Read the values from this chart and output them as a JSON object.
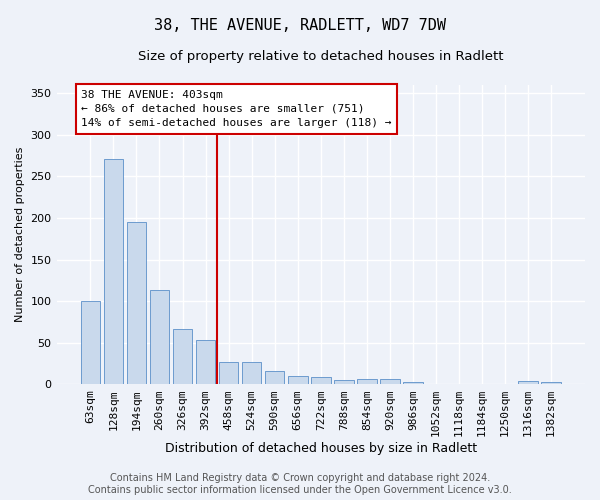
{
  "title": "38, THE AVENUE, RADLETT, WD7 7DW",
  "subtitle": "Size of property relative to detached houses in Radlett",
  "xlabel": "Distribution of detached houses by size in Radlett",
  "ylabel": "Number of detached properties",
  "categories": [
    "63sqm",
    "128sqm",
    "194sqm",
    "260sqm",
    "326sqm",
    "392sqm",
    "458sqm",
    "524sqm",
    "590sqm",
    "656sqm",
    "722sqm",
    "788sqm",
    "854sqm",
    "920sqm",
    "986sqm",
    "1052sqm",
    "1118sqm",
    "1184sqm",
    "1250sqm",
    "1316sqm",
    "1382sqm"
  ],
  "values": [
    100,
    271,
    195,
    114,
    66,
    53,
    27,
    27,
    16,
    10,
    9,
    5,
    6,
    6,
    3,
    1,
    1,
    1,
    0,
    4,
    3
  ],
  "bar_color": "#c9d9ec",
  "bar_edge_color": "#5b8fc9",
  "vline_x_index": 5,
  "vline_color": "#cc0000",
  "annotation_title": "38 THE AVENUE: 403sqm",
  "annotation_line1": "← 86% of detached houses are smaller (751)",
  "annotation_line2": "14% of semi-detached houses are larger (118) →",
  "annotation_box_color": "#cc0000",
  "annotation_bg": "#ffffff",
  "ylim": [
    0,
    360
  ],
  "yticks": [
    0,
    50,
    100,
    150,
    200,
    250,
    300,
    350
  ],
  "footer_line1": "Contains HM Land Registry data © Crown copyright and database right 2024.",
  "footer_line2": "Contains public sector information licensed under the Open Government Licence v3.0.",
  "background_color": "#eef2f9",
  "grid_color": "#ffffff",
  "title_fontsize": 11,
  "subtitle_fontsize": 9.5,
  "axis_fontsize": 8,
  "ylabel_fontsize": 8,
  "xlabel_fontsize": 9,
  "footer_fontsize": 7,
  "annotation_fontsize": 8
}
